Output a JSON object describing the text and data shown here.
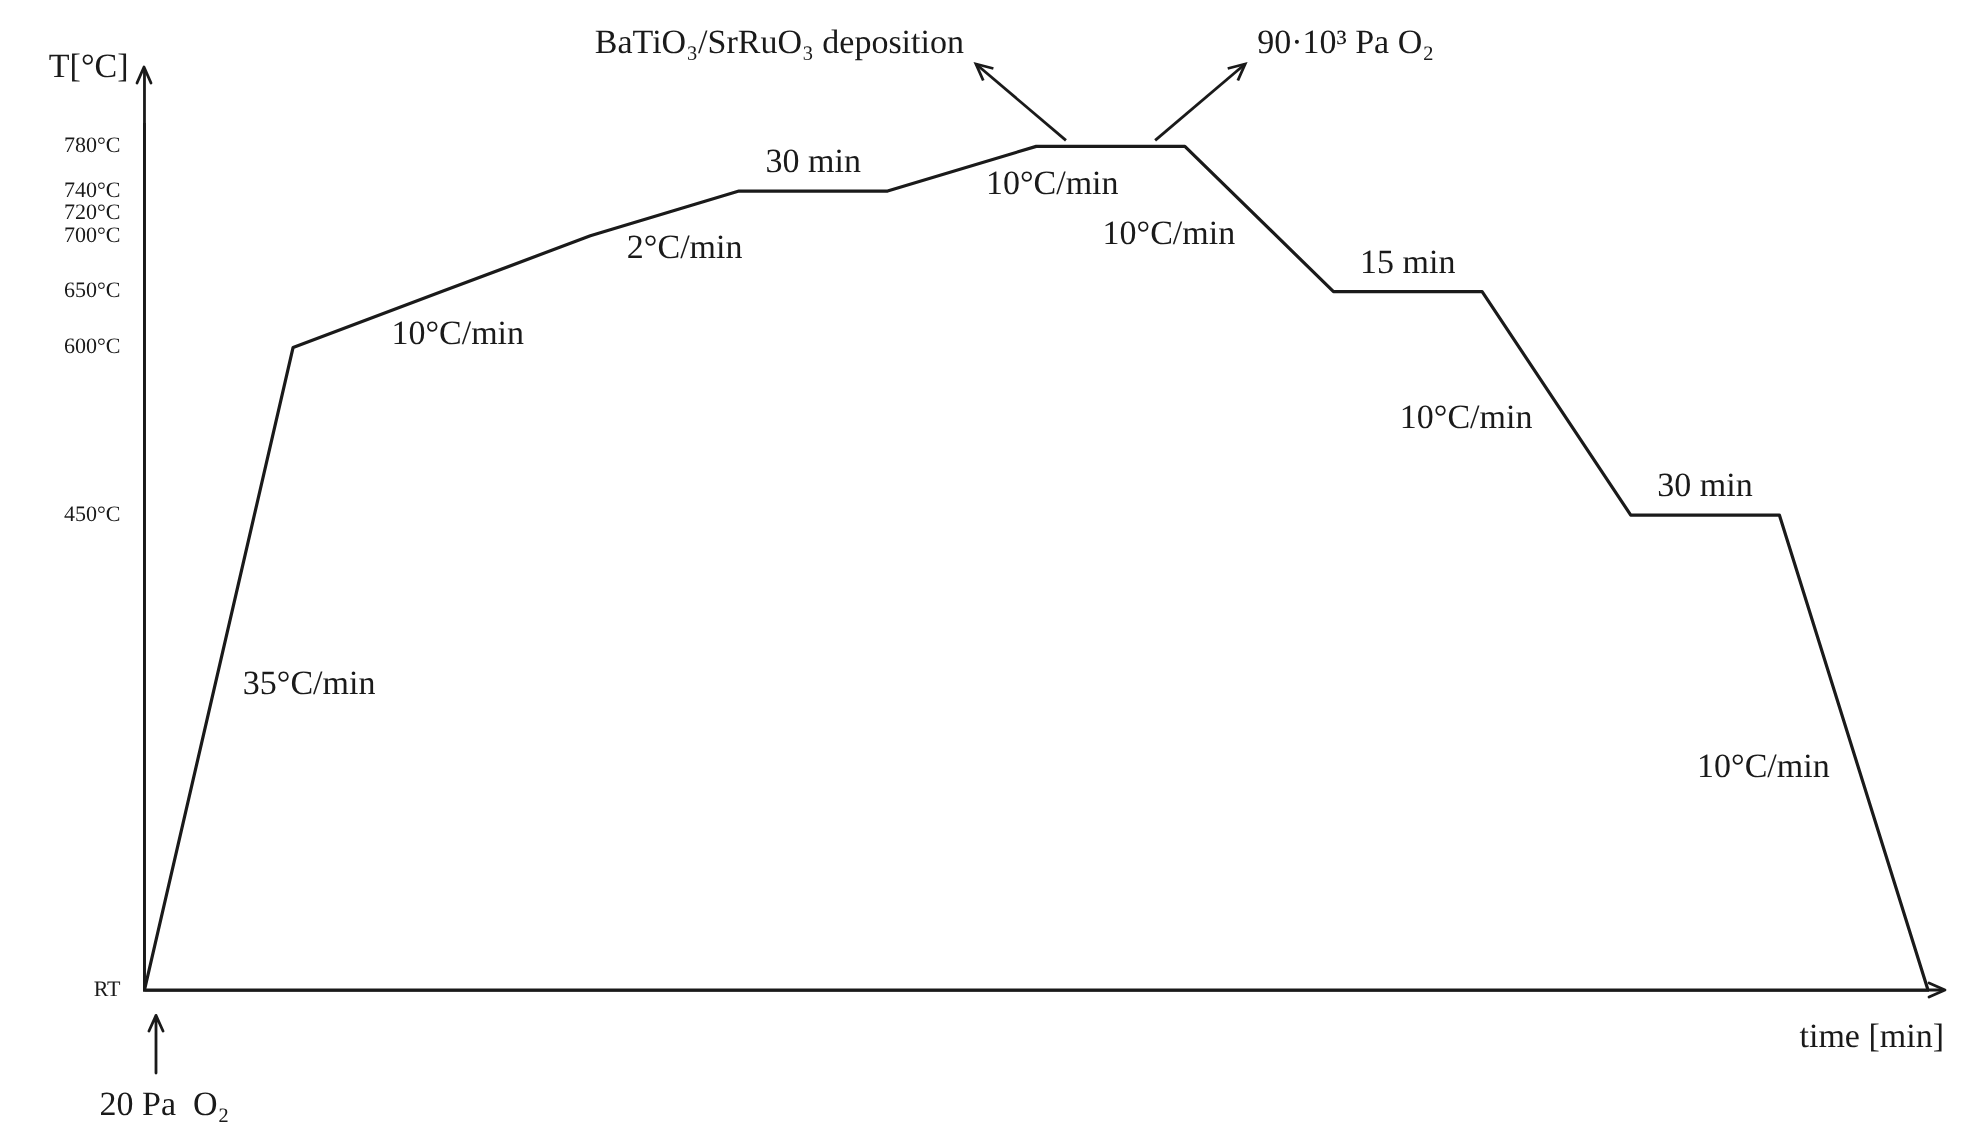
{
  "chart_data": {
    "type": "line",
    "xlabel": "time [min]",
    "ylabel": "T[°C]",
    "categories": [
      null,
      null,
      null,
      null,
      null,
      null,
      null,
      null,
      null,
      null,
      null,
      null,
      null
    ],
    "series": [
      {
        "color": "#1a1a1a",
        "values": [
          25,
          600,
          650,
          700,
          740,
          740,
          780,
          780,
          650,
          650,
          450,
          450,
          25
        ]
      }
    ],
    "ylim": [
      25,
      800
    ],
    "yticks": [
      {
        "value": 25,
        "label": "RT"
      },
      {
        "value": 450,
        "label": "450°C"
      },
      {
        "value": 600,
        "label": "600°C"
      },
      {
        "value": 650,
        "label": "650°C"
      },
      {
        "value": 700,
        "label": "700°C"
      },
      {
        "value": 720,
        "label": "720°C"
      },
      {
        "value": 740,
        "label": "740°C"
      },
      {
        "value": 780,
        "label": "780°C"
      }
    ],
    "tick_labels": "y",
    "grid": false,
    "legend": false,
    "marker": "none",
    "line_style": "solid",
    "annotations": [
      "35°C/min",
      "10°C/min",
      "2°C/min",
      "30 min",
      "10°C/min",
      "10°C/min",
      "15 min",
      "10°C/min",
      "30 min",
      "10°C/min",
      "BaTiO₃/SrRuO₃ deposition",
      "90·10³ Pa O₂",
      "20 Pa  O₂"
    ]
  }
}
